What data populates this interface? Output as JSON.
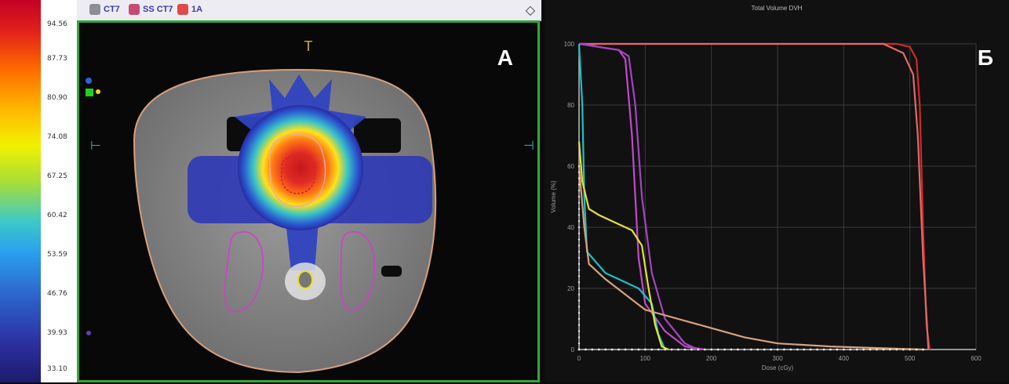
{
  "colorbar": {
    "ticks": [
      "94.56",
      "87.73",
      "80.90",
      "74.08",
      "67.25",
      "60.42",
      "53.59",
      "46.76",
      "39.93",
      "33.10"
    ]
  },
  "panelA": {
    "label": "A",
    "toolbar": [
      {
        "icon": "ct-icon",
        "label": "CT7"
      },
      {
        "icon": "lungs-icon",
        "label": "SS CT7"
      },
      {
        "icon": "person-icon",
        "label": "1A"
      }
    ],
    "orientation_markers": {
      "top": "T",
      "left": "⊢",
      "right": "⊣"
    }
  },
  "panelB": {
    "label": "Б",
    "title": "Total Volume DVH",
    "xlabel": "Dose (cGy)",
    "ylabel": "Volume (%)"
  },
  "chart_data": {
    "type": "line",
    "title": "Total Volume DVH",
    "xlabel": "Dose (cGy)",
    "ylabel": "Volume (%)",
    "xlim": [
      0,
      600
    ],
    "ylim": [
      0,
      100
    ],
    "x_ticks": [
      0,
      100,
      200,
      300,
      400,
      500,
      600
    ],
    "y_ticks": [
      0,
      20,
      40,
      60,
      80,
      100
    ],
    "grid": true,
    "series": [
      {
        "color": "#d22828",
        "x": [
          0,
          100,
          200,
          300,
          400,
          480,
          500,
          510,
          515,
          520,
          525,
          530
        ],
        "y": [
          100,
          100,
          100,
          100,
          100,
          100,
          99,
          95,
          80,
          40,
          8,
          0
        ]
      },
      {
        "color": "#e06a6a",
        "x": [
          0,
          100,
          200,
          300,
          400,
          460,
          490,
          505,
          512,
          520,
          528
        ],
        "y": [
          100,
          100,
          100,
          100,
          100,
          100,
          97,
          90,
          70,
          30,
          0
        ]
      },
      {
        "color": "#c14ac9",
        "x": [
          0,
          10,
          30,
          60,
          70,
          80,
          90,
          100,
          130,
          160,
          190
        ],
        "y": [
          100,
          100,
          99,
          98,
          95,
          70,
          30,
          15,
          6,
          1,
          0
        ]
      },
      {
        "color": "#a445c0",
        "x": [
          0,
          30,
          60,
          75,
          85,
          95,
          110,
          130,
          160,
          180
        ],
        "y": [
          100,
          99,
          98,
          96,
          80,
          50,
          25,
          10,
          2,
          0
        ]
      },
      {
        "color": "#1ebfc8",
        "x": [
          0,
          5,
          8,
          12,
          20,
          40,
          60,
          90,
          110,
          120,
          130
        ],
        "y": [
          100,
          80,
          50,
          32,
          30,
          25,
          23,
          20,
          15,
          5,
          0
        ]
      },
      {
        "color": "#e3e32e",
        "x": [
          0,
          5,
          15,
          30,
          60,
          80,
          95,
          105,
          115,
          125,
          135
        ],
        "y": [
          68,
          55,
          46,
          44,
          41,
          39,
          34,
          20,
          8,
          1,
          0
        ]
      },
      {
        "color": "#d7a37d",
        "x": [
          0,
          8,
          15,
          40,
          70,
          100,
          150,
          200,
          250,
          300,
          380,
          450,
          520
        ],
        "y": [
          60,
          40,
          28,
          23,
          18,
          13,
          10,
          7,
          4,
          2,
          1,
          0.5,
          0
        ]
      }
    ]
  }
}
